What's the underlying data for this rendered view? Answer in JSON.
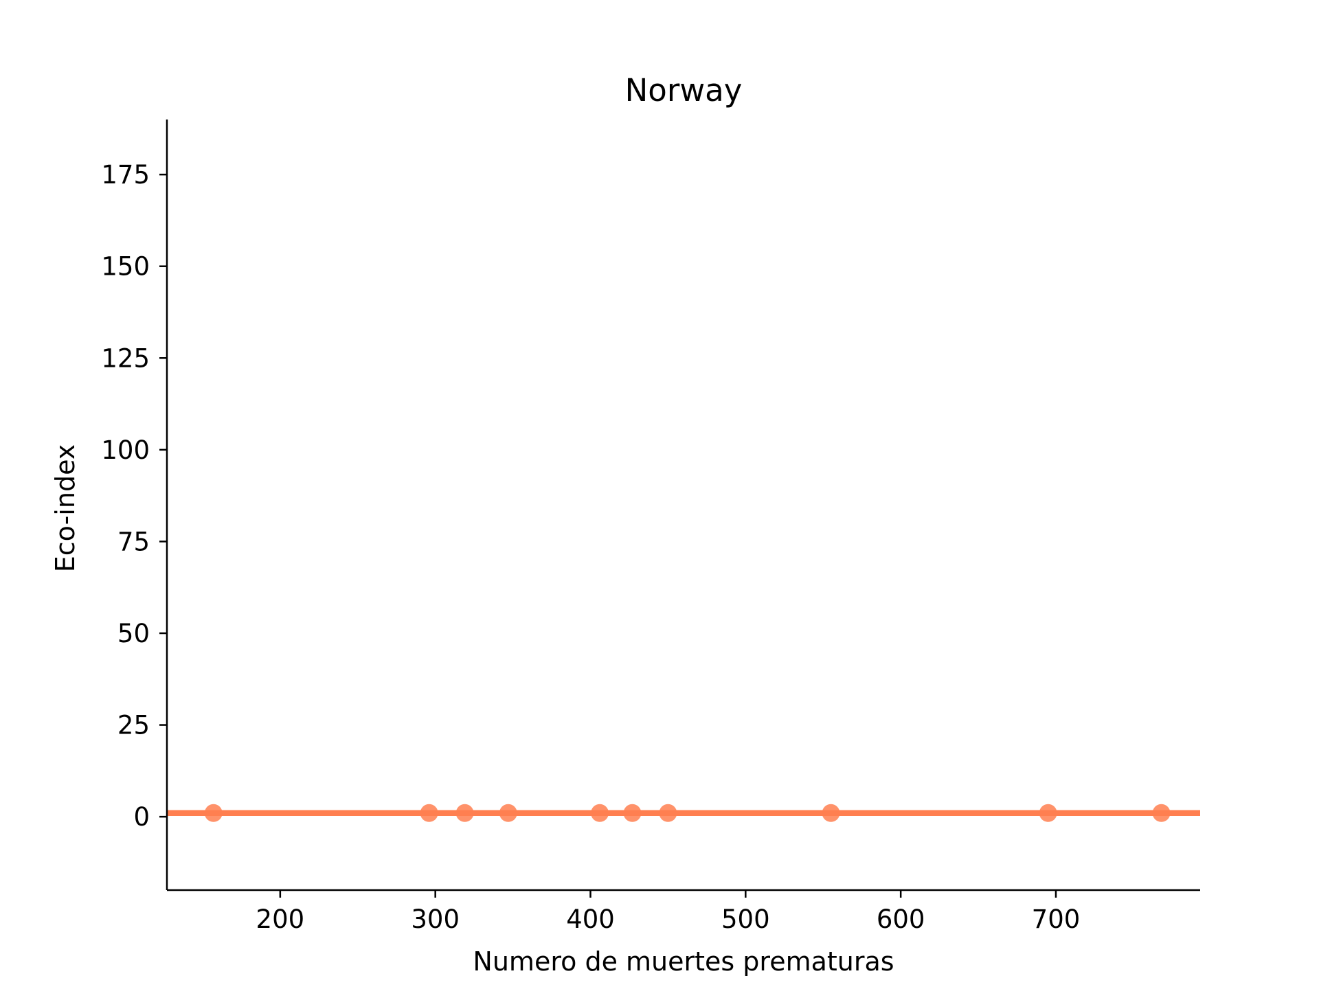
{
  "chart_data": {
    "type": "scatter",
    "title": "Norway",
    "xlabel": "Numero de muertes prematuras",
    "ylabel": "Eco-index",
    "xlim": [
      127,
      793
    ],
    "ylim": [
      -20,
      190
    ],
    "x_ticks": [
      200,
      300,
      400,
      500,
      600,
      700
    ],
    "y_ticks": [
      0,
      25,
      50,
      75,
      100,
      125,
      150,
      175
    ],
    "grid": false,
    "legend": "none",
    "series": [
      {
        "color": "#ff7f50",
        "points": [
          {
            "x": 157,
            "y": 1
          },
          {
            "x": 296,
            "y": 1
          },
          {
            "x": 319,
            "y": 1
          },
          {
            "x": 347,
            "y": 1
          },
          {
            "x": 406,
            "y": 1
          },
          {
            "x": 427,
            "y": 1
          },
          {
            "x": 450,
            "y": 1
          },
          {
            "x": 555,
            "y": 1
          },
          {
            "x": 695,
            "y": 1
          },
          {
            "x": 768,
            "y": 1
          }
        ]
      }
    ],
    "fit_line": {
      "color": "#ff7f50",
      "y": 1
    }
  }
}
